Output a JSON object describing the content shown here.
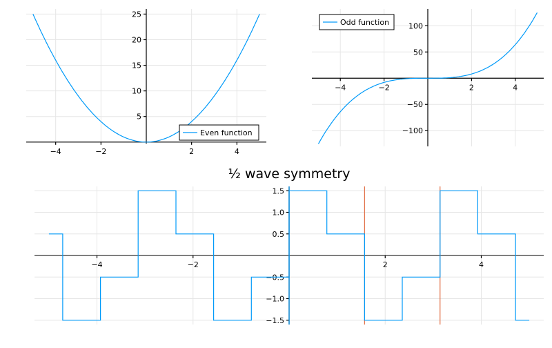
{
  "chart_data": [
    {
      "type": "line",
      "title": "",
      "xlabel": "",
      "ylabel": "",
      "xlim": [
        -5.3,
        5.3
      ],
      "ylim": [
        -0.3,
        26
      ],
      "xticks": [
        -4,
        -2,
        2,
        4
      ],
      "yticks": [
        5,
        10,
        15,
        20,
        25
      ],
      "grid": true,
      "legend": "bottom-right",
      "series": [
        {
          "name": "Even function",
          "formula": "x^2",
          "x_range": [
            -5,
            5
          ],
          "color": "#009af9"
        }
      ]
    },
    {
      "type": "line",
      "title": "",
      "xlabel": "",
      "ylabel": "",
      "xlim": [
        -5.3,
        5.3
      ],
      "ylim": [
        -130,
        132
      ],
      "xticks": [
        -4,
        -2,
        2,
        4
      ],
      "yticks": [
        -100,
        -50,
        50,
        100
      ],
      "grid": true,
      "legend": "top-left",
      "series": [
        {
          "name": "Odd function",
          "formula": "x^3",
          "x_range": [
            -5,
            5
          ],
          "color": "#009af9"
        }
      ]
    },
    {
      "type": "line",
      "title": "½ wave symmetry",
      "xlabel": "",
      "ylabel": "",
      "xlim": [
        -5.3,
        5.3
      ],
      "ylim": [
        -1.6,
        1.6
      ],
      "xticks": [
        -4,
        -2,
        2,
        4
      ],
      "yticks": [
        -1.5,
        -1.0,
        -0.5,
        0.5,
        1.0,
        1.5
      ],
      "ytick_labels": [
        "−1.5",
        "−1.0",
        "−0.5",
        "0.5",
        "1.0",
        "1.5"
      ],
      "grid": true,
      "legend": "none",
      "series": [
        {
          "name": "",
          "color": "#009af9",
          "x": [
            -5,
            -4.712,
            -4.712,
            -3.927,
            -3.927,
            -3.142,
            -3.142,
            -2.356,
            -2.356,
            -1.571,
            -1.571,
            -0.785,
            -0.785,
            0,
            0,
            0.785,
            0.785,
            1.571,
            1.571,
            2.356,
            2.356,
            3.142,
            3.142,
            3.927,
            3.927,
            4.712,
            4.712,
            5
          ],
          "y": [
            0.5,
            0.5,
            -1.5,
            -1.5,
            -0.5,
            -0.5,
            1.5,
            1.5,
            0.5,
            0.5,
            -1.5,
            -1.5,
            -0.5,
            -0.5,
            1.5,
            1.5,
            0.5,
            0.5,
            -1.5,
            -1.5,
            -0.5,
            -0.5,
            1.5,
            1.5,
            0.5,
            0.5,
            -1.5,
            -1.5
          ]
        }
      ],
      "vlines": [
        {
          "x": 0,
          "color": "#009af9"
        },
        {
          "x": 1.571,
          "color": "#e26f46"
        },
        {
          "x": 3.142,
          "color": "#e26f46"
        }
      ]
    }
  ]
}
